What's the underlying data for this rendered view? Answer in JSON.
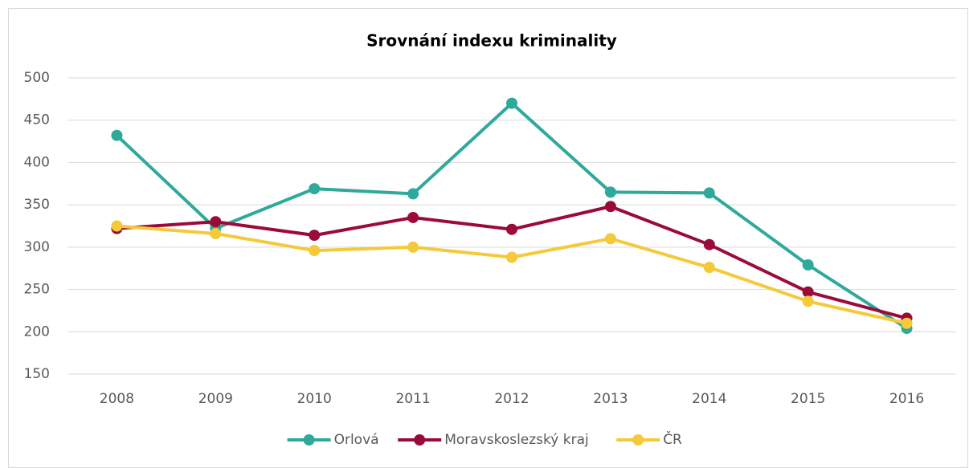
{
  "chart_data": {
    "type": "line",
    "title": "Srovnání indexu kriminality",
    "categories": [
      "2008",
      "2009",
      "2010",
      "2011",
      "2012",
      "2013",
      "2014",
      "2015",
      "2016"
    ],
    "series": [
      {
        "name": "Orlová",
        "color": "#2ea99b",
        "values": [
          432,
          322,
          369,
          363,
          470,
          365,
          364,
          279,
          204
        ]
      },
      {
        "name": "Moravskoslezský kraj",
        "color": "#9b0b3a",
        "values": [
          322,
          330,
          314,
          335,
          321,
          348,
          303,
          247,
          216
        ]
      },
      {
        "name": "ČR",
        "color": "#f4c93a",
        "values": [
          325,
          316,
          296,
          300,
          288,
          310,
          276,
          236,
          210
        ]
      }
    ],
    "ylim": [
      150,
      500
    ],
    "yticks": [
      150,
      200,
      250,
      300,
      350,
      400,
      450,
      500
    ],
    "grid": true,
    "legend": "bottom"
  }
}
